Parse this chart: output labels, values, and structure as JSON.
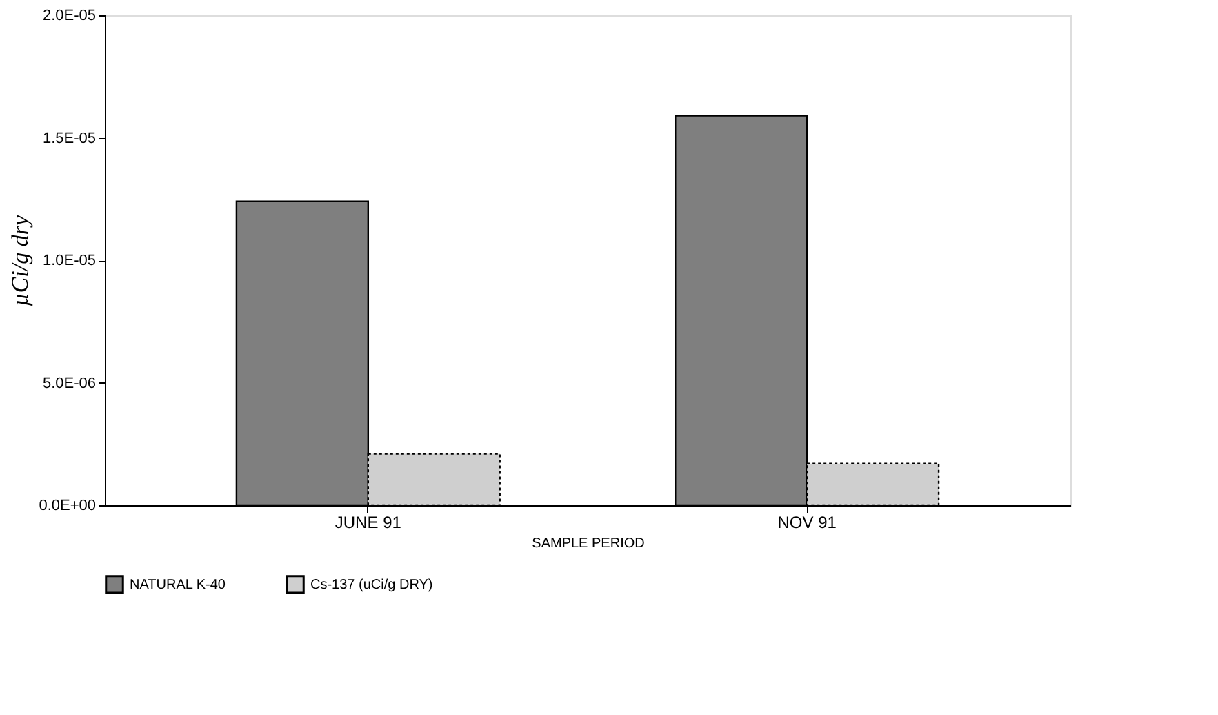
{
  "chart_data": {
    "type": "bar",
    "xlabel": "SAMPLE PERIOD",
    "ylabel": "µCi/g dry",
    "categories": [
      "JUNE 91",
      "NOV 91"
    ],
    "series": [
      {
        "name": "NATURAL K-40",
        "color": "#7f7f7f",
        "values": [
          1.24e-05,
          1.59e-05
        ]
      },
      {
        "name": "Cs-137 (uCi/g DRY)",
        "color": "#cfcfcf",
        "values": [
          2.1e-06,
          1.7e-06
        ]
      }
    ],
    "ylim": [
      0,
      2e-05
    ],
    "yticks": [
      {
        "value": 0,
        "label": "0.0E+00"
      },
      {
        "value": 5e-06,
        "label": "5.0E-06"
      },
      {
        "value": 1e-05,
        "label": "1.0E-05"
      },
      {
        "value": 1.5e-05,
        "label": "1.5E-05"
      },
      {
        "value": 2e-05,
        "label": "2.0E-05"
      }
    ],
    "grid": false,
    "legend": "bottom"
  }
}
